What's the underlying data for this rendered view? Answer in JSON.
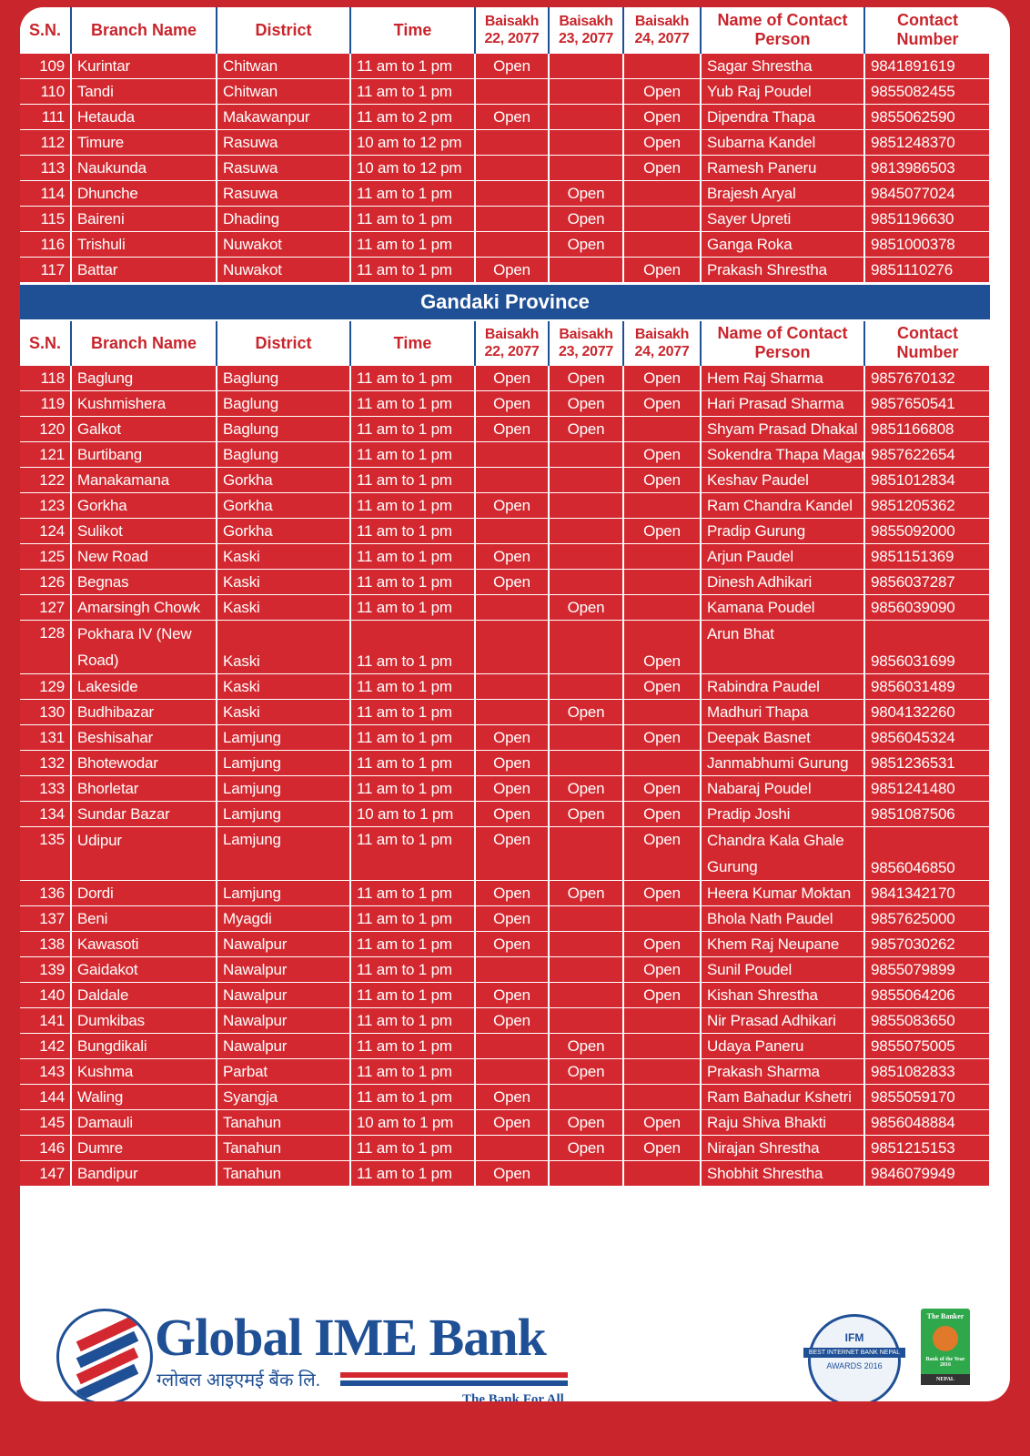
{
  "headers": [
    "S.N.",
    "Branch Name",
    "District",
    "Time",
    "Baisakh 22, 2077",
    "Baisakh 23, 2077",
    "Baisakh 24, 2077",
    "Name of Contact Person",
    "Contact Number"
  ],
  "sections": [
    {
      "title": "",
      "rows": [
        [
          "109",
          "Kurintar",
          "Chitwan",
          "11 am to 1 pm",
          "Open",
          "",
          "",
          "Sagar Shrestha",
          "9841891619"
        ],
        [
          "110",
          "Tandi",
          "Chitwan",
          "11 am to 1 pm",
          "",
          "",
          "Open",
          "Yub Raj Poudel",
          "9855082455"
        ],
        [
          "111",
          "Hetauda",
          "Makawanpur",
          "11 am to 2 pm",
          "Open",
          "",
          "Open",
          "Dipendra Thapa",
          "9855062590"
        ],
        [
          "112",
          "Timure",
          "Rasuwa",
          "10 am to 12 pm",
          "",
          "",
          "Open",
          "Subarna Kandel",
          "9851248370"
        ],
        [
          "113",
          "Naukunda",
          "Rasuwa",
          "10 am to 12 pm",
          "",
          "",
          "Open",
          "Ramesh Paneru",
          "9813986503"
        ],
        [
          "114",
          "Dhunche",
          "Rasuwa",
          "11 am to 1 pm",
          "",
          "Open",
          "",
          "Brajesh Aryal",
          "9845077024"
        ],
        [
          "115",
          "Baireni",
          "Dhading",
          "11 am to 1 pm",
          "",
          "Open",
          "",
          "Sayer Upreti",
          "9851196630"
        ],
        [
          "116",
          "Trishuli",
          "Nuwakot",
          "11 am to 1 pm",
          "",
          "Open",
          "",
          "Ganga Roka",
          "9851000378"
        ],
        [
          "117",
          "Battar",
          "Nuwakot",
          "11 am to 1 pm",
          "Open",
          "",
          "Open",
          "Prakash Shrestha",
          "9851110276"
        ]
      ]
    },
    {
      "title": "Gandaki Province",
      "rows": [
        [
          "118",
          "Baglung",
          "Baglung",
          "11 am to 1 pm",
          "Open",
          "Open",
          "Open",
          "Hem Raj Sharma",
          "9857670132"
        ],
        [
          "119",
          "Kushmishera",
          "Baglung",
          "11 am to 1 pm",
          "Open",
          "Open",
          "Open",
          "Hari Prasad Sharma",
          "9857650541"
        ],
        [
          "120",
          "Galkot",
          "Baglung",
          "11 am to 1 pm",
          "Open",
          "Open",
          "",
          "Shyam Prasad Dhakal",
          "9851166808"
        ],
        [
          "121",
          "Burtibang",
          "Baglung",
          "11 am to 1 pm",
          "",
          "",
          "Open",
          "Sokendra Thapa Magar",
          "9857622654"
        ],
        [
          "122",
          "Manakamana",
          "Gorkha",
          "11 am to 1 pm",
          "",
          "",
          "Open",
          "Keshav Paudel",
          "9851012834"
        ],
        [
          "123",
          "Gorkha",
          "Gorkha",
          "11 am to 1 pm",
          "Open",
          "",
          "",
          "Ram Chandra Kandel",
          "9851205362"
        ],
        [
          "124",
          "Sulikot",
          "Gorkha",
          "11 am to 1 pm",
          "",
          "",
          "Open",
          "Pradip Gurung",
          "9855092000"
        ],
        [
          "125",
          "New Road",
          "Kaski",
          "11 am to 1 pm",
          "Open",
          "",
          "",
          "Arjun Paudel",
          "9851151369"
        ],
        [
          "126",
          "Begnas",
          "Kaski",
          "11 am to 1 pm",
          "Open",
          "",
          "",
          "Dinesh Adhikari",
          "9856037287"
        ],
        [
          "127",
          "Amarsingh Chowk",
          "Kaski",
          "11 am to 1 pm",
          "",
          "Open",
          "",
          "Kamana Poudel",
          "9856039090"
        ],
        [
          "128",
          "Pokhara IV (New Road)",
          "Kaski",
          "11 am to 1 pm",
          "",
          "",
          "Open",
          "Arun Bhat",
          "9856031699"
        ],
        [
          "129",
          "Lakeside",
          "Kaski",
          "11 am to 1 pm",
          "",
          "",
          "Open",
          "Rabindra Paudel",
          "9856031489"
        ],
        [
          "130",
          "Budhibazar",
          "Kaski",
          "11 am to 1 pm",
          "",
          "Open",
          "",
          "Madhuri Thapa",
          "9804132260"
        ],
        [
          "131",
          "Beshisahar",
          "Lamjung",
          "11 am to 1 pm",
          "Open",
          "",
          "Open",
          "Deepak Basnet",
          "9856045324"
        ],
        [
          "132",
          "Bhotewodar",
          "Lamjung",
          "11 am to 1 pm",
          "Open",
          "",
          "",
          "Janmabhumi Gurung",
          "9851236531"
        ],
        [
          "133",
          "Bhorletar",
          "Lamjung",
          "11 am to 1 pm",
          "Open",
          "Open",
          "Open",
          "Nabaraj Poudel",
          "9851241480"
        ],
        [
          "134",
          "Sundar Bazar",
          "Lamjung",
          "10 am to 1 pm",
          "Open",
          "Open",
          "Open",
          "Pradip Joshi",
          "9851087506"
        ],
        [
          "135",
          "Udipur",
          "Lamjung",
          "11 am to 1 pm",
          "Open",
          "",
          "Open",
          "Chandra Kala Ghale Gurung",
          "9856046850"
        ],
        [
          "136",
          "Dordi",
          "Lamjung",
          "11 am to 1 pm",
          "Open",
          "Open",
          "Open",
          "Heera Kumar Moktan",
          "9841342170"
        ],
        [
          "137",
          "Beni",
          "Myagdi",
          "11 am to 1 pm",
          "Open",
          "",
          "",
          "Bhola Nath Paudel",
          "9857625000"
        ],
        [
          "138",
          "Kawasoti",
          "Nawalpur",
          "11 am to 1 pm",
          "Open",
          "",
          "Open",
          "Khem Raj Neupane",
          "9857030262"
        ],
        [
          "139",
          "Gaidakot",
          "Nawalpur",
          "11 am to 1 pm",
          "",
          "",
          "Open",
          "Sunil Poudel",
          "9855079899"
        ],
        [
          "140",
          "Daldale",
          "Nawalpur",
          "11 am to 1 pm",
          "Open",
          "",
          "Open",
          "Kishan Shrestha",
          "9855064206"
        ],
        [
          "141",
          "Dumkibas",
          "Nawalpur",
          "11 am to 1 pm",
          "Open",
          "",
          "",
          "Nir Prasad Adhikari",
          "9855083650"
        ],
        [
          "142",
          "Bungdikali",
          "Nawalpur",
          "11 am to 1 pm",
          "",
          "Open",
          "",
          "Udaya Paneru",
          "9855075005"
        ],
        [
          "143",
          "Kushma",
          "Parbat",
          "11 am to 1 pm",
          "",
          "Open",
          "",
          "Prakash Sharma",
          "9851082833"
        ],
        [
          "144",
          "Waling",
          "Syangja",
          "11 am to 1 pm",
          "Open",
          "",
          "",
          "Ram Bahadur Kshetri",
          "9855059170"
        ],
        [
          "145",
          "Damauli",
          "Tanahun",
          "10 am to 1 pm",
          "Open",
          "Open",
          "Open",
          "Raju Shiva Bhakti",
          "9856048884"
        ],
        [
          "146",
          "Dumre",
          "Tanahun",
          "11 am to 1 pm",
          "",
          "Open",
          "Open",
          "Nirajan Shrestha",
          "9851215153"
        ],
        [
          "147",
          "Bandipur",
          "Tanahun",
          "11 am to 1 pm",
          "Open",
          "",
          "",
          "Shobhit Shrestha",
          "9846079949"
        ]
      ]
    }
  ],
  "footer": {
    "brand": "Global IME Bank",
    "brand_devanagari": "ग्लोबल आइएमई बैंक लि.",
    "tagline": "The Bank For All",
    "award1": {
      "org": "IFM",
      "text": "BEST INTERNET BANK NEPAL",
      "sub": "AWARDS 2016"
    },
    "award2": {
      "org": "The Banker",
      "text": "Bank of the Year 2016",
      "country": "NEPAL"
    }
  },
  "colors": {
    "red": "#d3282f",
    "blue": "#1f4f95",
    "white": "#ffffff"
  }
}
